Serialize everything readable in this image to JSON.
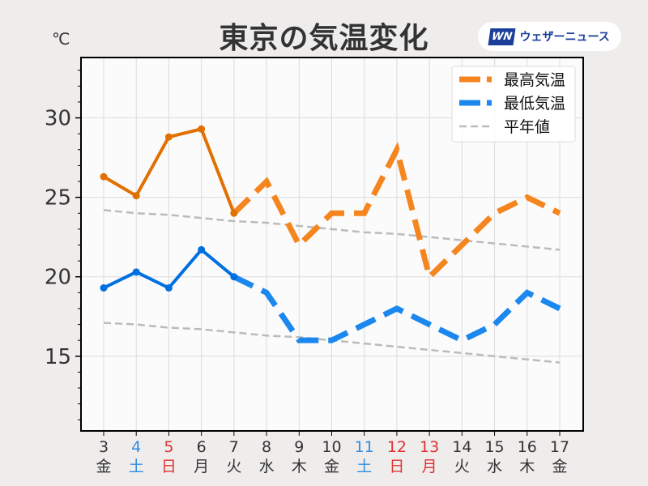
{
  "title": "東京の気温変化",
  "brand": {
    "mark": "WN",
    "name": "ウェザーニュース"
  },
  "chart_data": {
    "type": "line",
    "title": "東京の気温変化",
    "ylabel": "℃",
    "ylim": [
      10.3,
      33.8
    ],
    "yticks": [
      15,
      20,
      25,
      30
    ],
    "grid": true,
    "legend_position": "top-right",
    "x": [
      "3",
      "4",
      "5",
      "6",
      "7",
      "8",
      "9",
      "10",
      "11",
      "12",
      "13",
      "14",
      "15",
      "16",
      "17"
    ],
    "weekdays": [
      "金",
      "土",
      "日",
      "月",
      "火",
      "水",
      "木",
      "金",
      "土",
      "日",
      "月",
      "火",
      "水",
      "木",
      "金"
    ],
    "weekday_colors": [
      "#333333",
      "#2f8ee0",
      "#e03030",
      "#333333",
      "#333333",
      "#333333",
      "#333333",
      "#333333",
      "#2f8ee0",
      "#e03030",
      "#e03030",
      "#333333",
      "#333333",
      "#333333",
      "#333333"
    ],
    "observed_until_index": 4,
    "series": [
      {
        "name": "最高気温",
        "color_observed": "#e07000",
        "color_forecast": "#f5861f",
        "values": [
          26.3,
          25.1,
          28.8,
          29.3,
          24.0,
          26,
          22,
          24,
          24,
          28,
          20,
          22,
          24,
          25,
          24
        ]
      },
      {
        "name": "最低気温",
        "color_observed": "#0070e0",
        "color_forecast": "#1a88ee",
        "values": [
          19.3,
          20.3,
          19.3,
          21.7,
          20.0,
          19,
          16,
          16,
          17,
          18,
          17,
          16,
          17,
          19,
          18
        ]
      },
      {
        "name": "平年値",
        "color": "#bbbbbb",
        "values_high": [
          24.2,
          24.0,
          23.9,
          23.7,
          23.5,
          23.4,
          23.2,
          23.0,
          22.8,
          22.7,
          22.5,
          22.3,
          22.1,
          21.9,
          21.7
        ],
        "values_low": [
          17.1,
          17.0,
          16.8,
          16.7,
          16.5,
          16.3,
          16.2,
          16.0,
          15.8,
          15.6,
          15.4,
          15.2,
          15.0,
          14.8,
          14.6
        ]
      }
    ]
  }
}
